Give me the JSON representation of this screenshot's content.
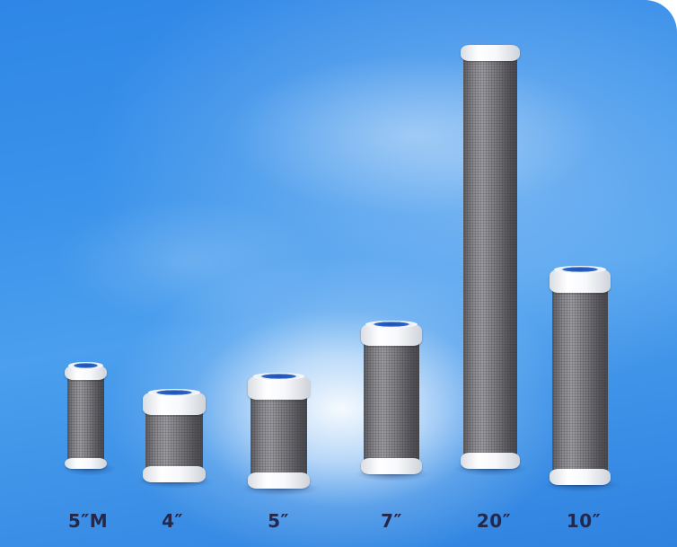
{
  "labels": [
    "5″M",
    "4″",
    "5″",
    "7″",
    "20″",
    "10″"
  ]
}
